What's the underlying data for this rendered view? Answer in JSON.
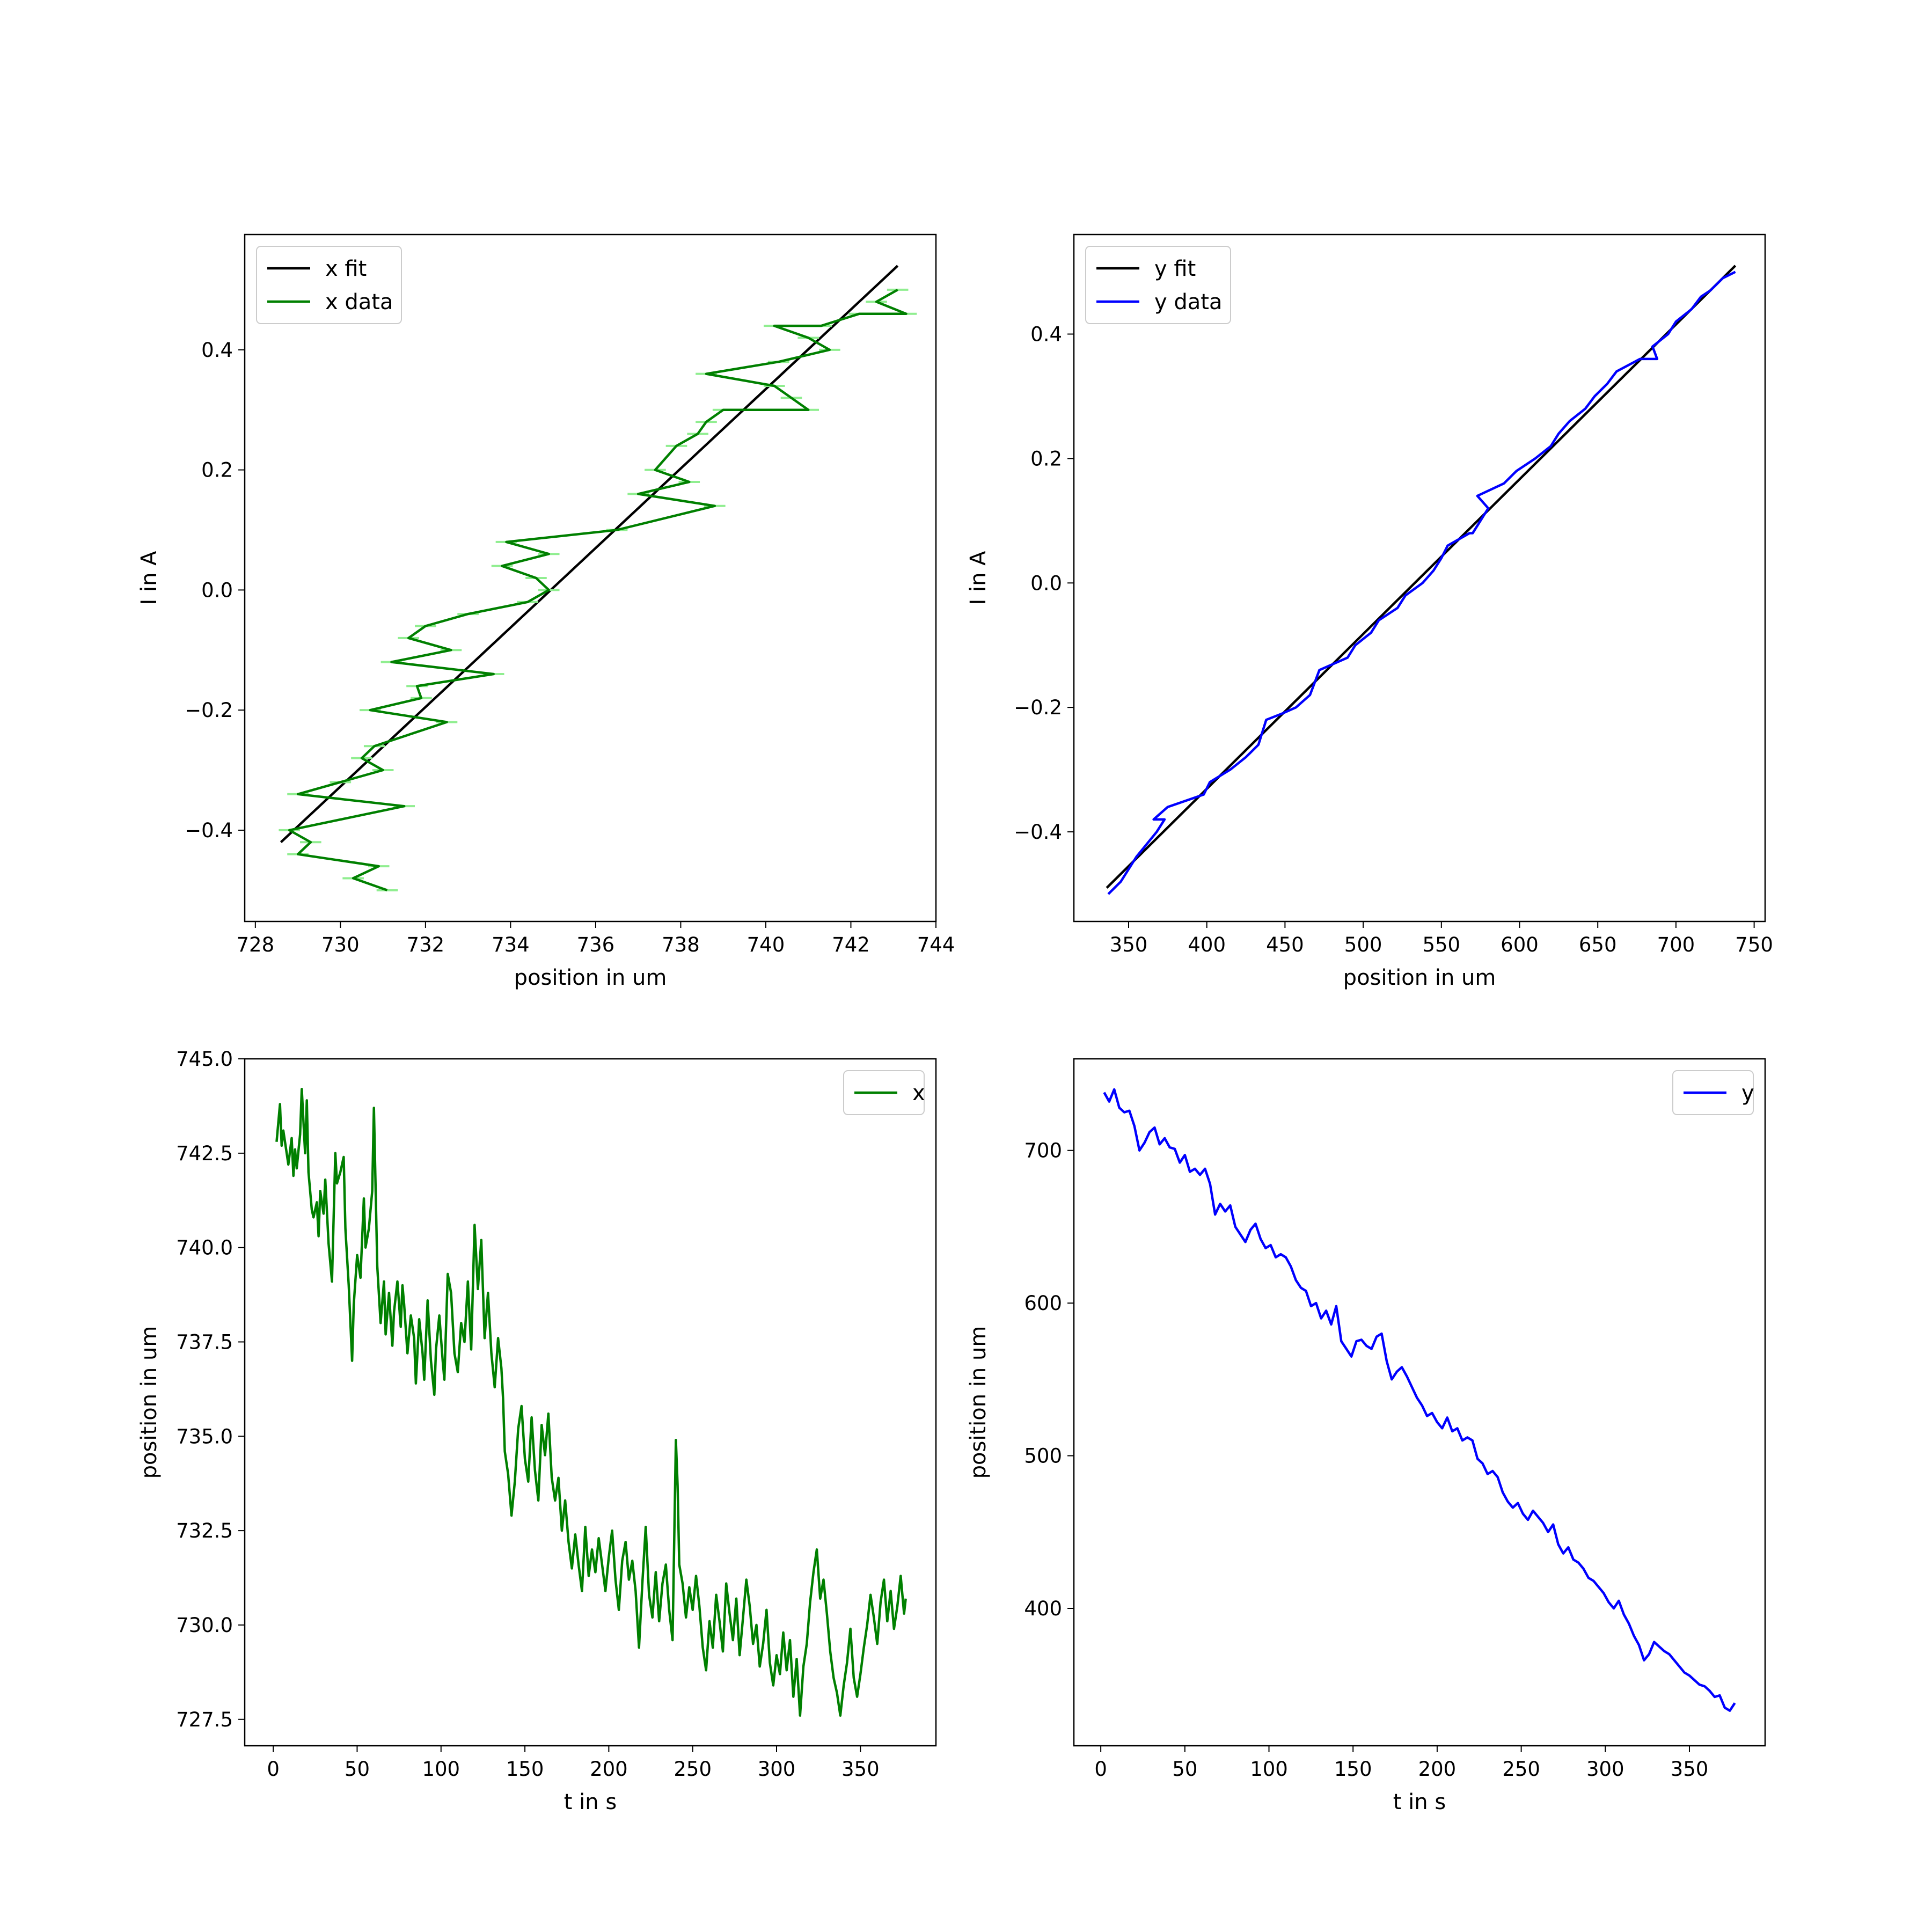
{
  "chart_data": [
    {
      "type": "line",
      "xlabel": "position in um",
      "ylabel": "I in A",
      "xlim": [
        727.75,
        744.0
      ],
      "ylim": [
        -0.552,
        0.592
      ],
      "xticks": [
        "728",
        "730",
        "732",
        "734",
        "736",
        "738",
        "740",
        "742",
        "744"
      ],
      "yticks": [
        "−0.4",
        "−0.2",
        "0.0",
        "0.2",
        "0.4"
      ],
      "legend_position": "upper left",
      "series": [
        {
          "name": "x fit",
          "color": "#000000",
          "x": [
            728.6,
            743.1
          ],
          "y": [
            -0.42,
            0.54
          ]
        },
        {
          "name": "x data",
          "color": "#008000",
          "error_color": "#90ee90",
          "x_error": 0.25,
          "x": [
            731.1,
            730.3,
            730.9,
            729.0,
            729.3,
            728.8,
            731.5,
            729.0,
            730.0,
            731.0,
            730.5,
            730.8,
            732.5,
            730.7,
            731.9,
            731.8,
            733.6,
            731.2,
            732.6,
            731.6,
            732.0,
            733.0,
            734.4,
            734.9,
            734.6,
            733.8,
            734.9,
            733.9,
            736.5,
            738.8,
            737.0,
            738.2,
            737.4,
            737.9,
            738.4,
            738.6,
            739.0,
            741.0,
            740.6,
            740.2,
            738.6,
            740.3,
            741.5,
            741.0,
            740.2,
            741.3,
            742.2,
            743.3,
            742.6,
            743.1
          ],
          "y": [
            -0.5,
            -0.48,
            -0.46,
            -0.44,
            -0.42,
            -0.4,
            -0.36,
            -0.34,
            -0.32,
            -0.3,
            -0.28,
            -0.26,
            -0.22,
            -0.2,
            -0.18,
            -0.16,
            -0.14,
            -0.12,
            -0.1,
            -0.08,
            -0.06,
            -0.04,
            -0.02,
            0.0,
            0.02,
            0.04,
            0.06,
            0.08,
            0.1,
            0.14,
            0.16,
            0.18,
            0.2,
            0.24,
            0.26,
            0.28,
            0.3,
            0.3,
            0.32,
            0.34,
            0.36,
            0.38,
            0.4,
            0.42,
            0.44,
            0.44,
            0.46,
            0.46,
            0.48,
            0.5
          ]
        }
      ]
    },
    {
      "type": "line",
      "xlabel": "position in um",
      "ylabel": "I in A",
      "xlim": [
        315,
        757
      ],
      "ylim": [
        -0.544,
        0.56
      ],
      "xticks": [
        "350",
        "400",
        "450",
        "500",
        "550",
        "600",
        "650",
        "700",
        "750"
      ],
      "yticks": [
        "−0.4",
        "−0.2",
        "0.0",
        "0.2",
        "0.4"
      ],
      "legend_position": "upper left",
      "series": [
        {
          "name": "y fit",
          "color": "#000000",
          "x": [
            336,
            738
          ],
          "y": [
            -0.49,
            0.51
          ]
        },
        {
          "name": "y data",
          "color": "#0000ff",
          "x": [
            337,
            345,
            355,
            368,
            373,
            366,
            375,
            398,
            402,
            415,
            425,
            433,
            438,
            448,
            457,
            466,
            472,
            490,
            495,
            505,
            510,
            522,
            527,
            538,
            545,
            550,
            554,
            568,
            570,
            580,
            573,
            590,
            598,
            610,
            620,
            625,
            632,
            642,
            648,
            656,
            662,
            677,
            688,
            685,
            695,
            700,
            710,
            716,
            722,
            730,
            738
          ],
          "y": [
            -0.5,
            -0.48,
            -0.44,
            -0.4,
            -0.38,
            -0.38,
            -0.36,
            -0.34,
            -0.32,
            -0.3,
            -0.28,
            -0.26,
            -0.22,
            -0.21,
            -0.2,
            -0.18,
            -0.14,
            -0.12,
            -0.1,
            -0.08,
            -0.06,
            -0.04,
            -0.02,
            0.0,
            0.02,
            0.04,
            0.06,
            0.08,
            0.08,
            0.12,
            0.14,
            0.16,
            0.18,
            0.2,
            0.22,
            0.24,
            0.26,
            0.28,
            0.3,
            0.32,
            0.34,
            0.36,
            0.36,
            0.38,
            0.4,
            0.42,
            0.44,
            0.46,
            0.47,
            0.49,
            0.5
          ]
        }
      ]
    },
    {
      "type": "line",
      "xlabel": "t in s",
      "ylabel": "position in um",
      "xlim": [
        -17,
        395
      ],
      "ylim": [
        726.8,
        745.0
      ],
      "xticks": [
        "0",
        "50",
        "100",
        "150",
        "200",
        "250",
        "300",
        "350"
      ],
      "yticks": [
        "727.5",
        "730.0",
        "732.5",
        "735.0",
        "737.5",
        "740.0",
        "742.5",
        "745.0"
      ],
      "legend_position": "upper right",
      "series": [
        {
          "name": "x",
          "color": "#008000",
          "x": [
            2,
            4,
            5,
            6,
            8,
            9,
            11,
            12,
            13,
            14,
            16,
            17,
            19,
            20,
            21,
            23,
            24,
            26,
            27,
            28,
            30,
            31,
            33,
            35,
            37,
            38,
            40,
            42,
            43,
            45,
            47,
            48,
            50,
            52,
            54,
            55,
            57,
            59,
            60,
            62,
            64,
            66,
            67,
            69,
            71,
            72,
            74,
            76,
            77,
            78,
            80,
            82,
            84,
            85,
            87,
            89,
            90,
            92,
            94,
            96,
            97,
            99,
            101,
            102,
            104,
            106,
            108,
            110,
            112,
            114,
            116,
            118,
            120,
            122,
            124,
            126,
            128,
            130,
            132,
            134,
            136,
            137,
            138,
            140,
            142,
            144,
            146,
            148,
            150,
            152,
            154,
            156,
            158,
            160,
            162,
            164,
            166,
            168,
            170,
            172,
            174,
            176,
            178,
            180,
            182,
            184,
            186,
            188,
            190,
            192,
            194,
            196,
            198,
            200,
            202,
            204,
            206,
            208,
            210,
            212,
            214,
            216,
            218,
            220,
            222,
            224,
            226,
            228,
            230,
            232,
            234,
            236,
            238,
            240,
            241,
            242,
            244,
            246,
            248,
            250,
            252,
            254,
            256,
            258,
            260,
            262,
            264,
            266,
            268,
            270,
            272,
            274,
            276,
            278,
            280,
            282,
            284,
            286,
            288,
            290,
            292,
            294,
            296,
            298,
            300,
            302,
            304,
            306,
            308,
            310,
            312,
            314,
            316,
            318,
            320,
            322,
            324,
            326,
            328,
            330,
            332,
            334,
            336,
            338,
            340,
            342,
            344,
            346,
            348,
            350,
            352,
            354,
            356,
            358,
            360,
            362,
            364,
            366,
            368,
            370,
            372,
            374,
            376,
            377
          ],
          "y": [
            742.8,
            743.8,
            742.7,
            743.1,
            742.5,
            742.2,
            742.9,
            741.9,
            742.6,
            742.1,
            743.0,
            744.2,
            742.5,
            743.9,
            742.0,
            741.0,
            740.8,
            741.2,
            740.3,
            741.5,
            740.9,
            741.8,
            740.1,
            739.1,
            742.5,
            741.7,
            742.0,
            742.4,
            740.5,
            739.0,
            737.0,
            738.5,
            739.8,
            739.2,
            741.3,
            740.0,
            740.5,
            741.5,
            743.7,
            739.5,
            738.0,
            739.1,
            737.7,
            738.8,
            737.4,
            738.3,
            739.1,
            737.9,
            739.0,
            738.5,
            737.2,
            738.2,
            737.6,
            736.4,
            738.1,
            737.2,
            736.5,
            738.6,
            737.0,
            736.1,
            737.3,
            738.2,
            737.0,
            736.5,
            739.3,
            738.8,
            737.2,
            736.7,
            738.0,
            737.5,
            739.1,
            737.3,
            740.6,
            738.9,
            740.2,
            737.6,
            738.8,
            737.2,
            736.3,
            737.6,
            736.8,
            736.0,
            734.6,
            734.0,
            732.9,
            733.8,
            735.2,
            735.8,
            734.4,
            733.8,
            735.5,
            734.1,
            733.3,
            735.3,
            734.5,
            735.6,
            733.9,
            733.3,
            733.9,
            732.5,
            733.3,
            732.2,
            731.5,
            732.4,
            731.6,
            730.9,
            732.6,
            731.3,
            732.0,
            731.4,
            732.3,
            731.6,
            730.9,
            731.8,
            732.5,
            731.2,
            730.4,
            731.7,
            732.2,
            731.2,
            731.7,
            730.9,
            729.4,
            731.1,
            732.6,
            730.8,
            730.2,
            731.4,
            730.1,
            731.1,
            731.6,
            730.4,
            729.6,
            734.9,
            733.7,
            731.6,
            731.1,
            730.2,
            731.0,
            730.4,
            731.3,
            730.5,
            729.4,
            728.8,
            730.1,
            729.4,
            730.8,
            730.1,
            729.3,
            731.1,
            730.3,
            729.6,
            730.7,
            729.2,
            730.2,
            731.2,
            730.5,
            729.5,
            730.0,
            728.9,
            729.5,
            730.4,
            729.0,
            728.4,
            729.2,
            728.7,
            729.8,
            728.8,
            729.6,
            728.1,
            729.1,
            727.6,
            728.9,
            729.5,
            730.6,
            731.4,
            732.0,
            730.7,
            731.2,
            730.3,
            729.3,
            728.6,
            728.2,
            727.6,
            728.4,
            729.0,
            729.9,
            728.6,
            728.1,
            728.7,
            729.4,
            730.0,
            730.8,
            730.2,
            729.5,
            730.6,
            731.2,
            730.1,
            730.9,
            729.9,
            730.5,
            731.3,
            730.3,
            730.7
          ]
        }
      ]
    },
    {
      "type": "line",
      "xlabel": "t in s",
      "ylabel": "position in um",
      "xlim": [
        -16,
        395
      ],
      "ylim": [
        310,
        760
      ],
      "xticks": [
        "0",
        "50",
        "100",
        "150",
        "200",
        "250",
        "300",
        "350"
      ],
      "yticks": [
        "400",
        "500",
        "600",
        "700"
      ],
      "legend_position": "upper right",
      "series": [
        {
          "name": "y",
          "color": "#0000ff",
          "x": [
            2,
            5,
            8,
            11,
            14,
            17,
            20,
            23,
            26,
            29,
            32,
            35,
            38,
            41,
            44,
            47,
            50,
            53,
            56,
            59,
            62,
            65,
            68,
            71,
            74,
            77,
            80,
            83,
            86,
            89,
            92,
            95,
            98,
            101,
            104,
            107,
            110,
            113,
            116,
            119,
            122,
            125,
            128,
            131,
            134,
            137,
            140,
            143,
            146,
            149,
            152,
            155,
            158,
            161,
            164,
            167,
            170,
            173,
            176,
            179,
            182,
            185,
            188,
            191,
            194,
            197,
            200,
            203,
            206,
            209,
            212,
            215,
            218,
            221,
            224,
            227,
            230,
            233,
            236,
            239,
            242,
            245,
            248,
            251,
            254,
            257,
            260,
            263,
            266,
            269,
            272,
            275,
            278,
            281,
            284,
            287,
            290,
            293,
            296,
            299,
            302,
            305,
            308,
            311,
            314,
            317,
            320,
            323,
            326,
            329,
            332,
            335,
            338,
            341,
            344,
            347,
            350,
            353,
            356,
            359,
            362,
            365,
            368,
            371,
            374,
            377
          ],
          "y": [
            738,
            732,
            740,
            728,
            725,
            726,
            716,
            700,
            705,
            712,
            715,
            704,
            708,
            702,
            701,
            692,
            697,
            686,
            688,
            684,
            688,
            678,
            658,
            665,
            660,
            664,
            650,
            645,
            640,
            648,
            652,
            642,
            636,
            638,
            630,
            632,
            630,
            624,
            615,
            610,
            608,
            598,
            600,
            590,
            595,
            586,
            598,
            575,
            570,
            565,
            575,
            576,
            572,
            570,
            578,
            580,
            562,
            550,
            555,
            558,
            552,
            545,
            538,
            533,
            526,
            528,
            522,
            518,
            525,
            516,
            518,
            510,
            512,
            510,
            498,
            495,
            488,
            490,
            486,
            476,
            470,
            466,
            469,
            462,
            458,
            464,
            460,
            456,
            450,
            455,
            442,
            436,
            440,
            432,
            430,
            426,
            420,
            418,
            414,
            410,
            404,
            400,
            405,
            396,
            390,
            382,
            376,
            366,
            370,
            378,
            375,
            372,
            370,
            366,
            362,
            358,
            356,
            353,
            350,
            349,
            346,
            342,
            343,
            335,
            333,
            338
          ]
        }
      ]
    }
  ]
}
